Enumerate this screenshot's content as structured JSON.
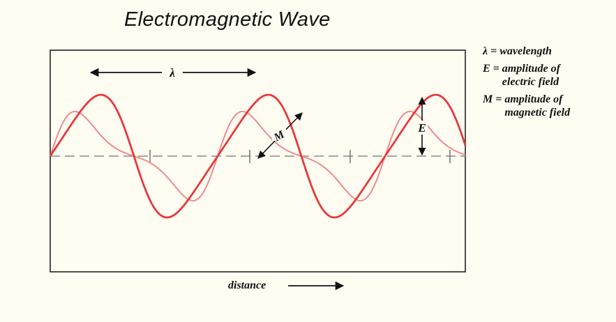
{
  "title": "Electromagnetic Wave",
  "legend": [
    {
      "symbol": "λ",
      "lines": [
        "wavelength"
      ]
    },
    {
      "symbol": "E",
      "lines": [
        "amplitude of",
        "electric field"
      ]
    },
    {
      "symbol": "M",
      "lines": [
        "amplitude of",
        "magnetic field"
      ]
    }
  ],
  "labels": {
    "lambda": "λ",
    "E": "E",
    "M": "M",
    "distance": "distance"
  },
  "colors": {
    "electric_wave": "#e8373a",
    "magnetic_wave": "#f08a8c",
    "frame": "#222222",
    "axis": "#888888"
  }
}
